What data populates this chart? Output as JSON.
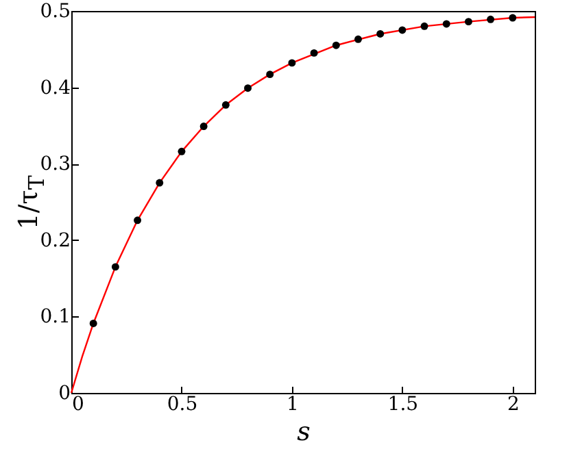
{
  "chart_data": {
    "type": "scatter",
    "xlabel": "s",
    "ylabel": "1/τ$_{T}$",
    "xlim": [
      0,
      2.1
    ],
    "ylim": [
      0,
      0.5
    ],
    "xticks": [
      0,
      0.5,
      1,
      1.5,
      2
    ],
    "yticks": [
      0,
      0.1,
      0.2,
      0.3,
      0.4,
      0.5
    ],
    "grid": false,
    "series": [
      {
        "type": "line",
        "color": "#ff0000",
        "line_style": "solid",
        "marker": "none",
        "x": [
          0,
          0.05,
          0.1,
          0.2,
          0.3,
          0.4,
          0.5,
          0.6,
          0.7,
          0.8,
          0.9,
          1.0,
          1.2,
          1.4,
          1.6,
          1.8,
          2.0,
          2.1
        ],
        "values": [
          0,
          0.048,
          0.091,
          0.165,
          0.226,
          0.275,
          0.316,
          0.349,
          0.377,
          0.399,
          0.417,
          0.432,
          0.455,
          0.47,
          0.48,
          0.486,
          0.491,
          0.492
        ]
      },
      {
        "color": "#000000",
        "marker": "circle",
        "x": [
          0.1,
          0.2,
          0.3,
          0.4,
          0.5,
          0.6,
          0.7,
          0.8,
          0.9,
          1.0,
          1.1,
          1.2,
          1.3,
          1.4,
          1.5,
          1.6,
          1.7,
          1.8,
          1.9,
          2.0
        ],
        "values": [
          0.091,
          0.165,
          0.226,
          0.275,
          0.316,
          0.349,
          0.377,
          0.399,
          0.417,
          0.432,
          0.445,
          0.455,
          0.463,
          0.47,
          0.475,
          0.48,
          0.483,
          0.486,
          0.489,
          0.491
        ]
      }
    ]
  }
}
